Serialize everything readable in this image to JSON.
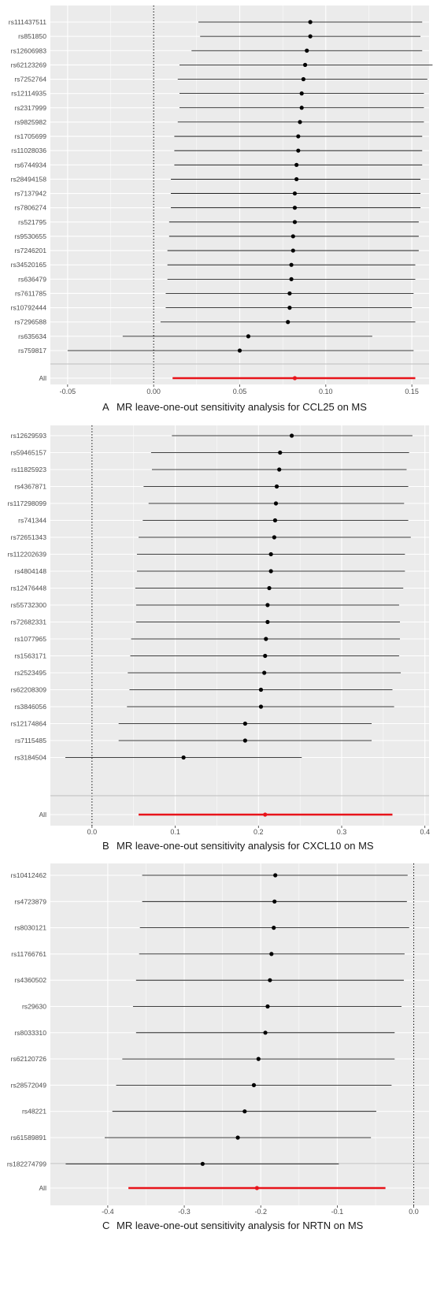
{
  "chart_data": [
    {
      "type": "forest",
      "panel_letter": "A",
      "caption": "MR leave-one-out sensitivity analysis for CCL25 on MS",
      "xlim": [
        -0.06,
        0.16
      ],
      "xticks": [
        -0.05,
        0.0,
        0.05,
        0.1,
        0.15
      ],
      "xtick_labels": [
        "-0.05",
        "0.00",
        "0.05",
        "0.10",
        "0.15"
      ],
      "null_line": 0,
      "rows": [
        {
          "snp": "rs111437511",
          "estimate": 0.091,
          "lower": 0.026,
          "upper": 0.156
        },
        {
          "snp": "rs851850",
          "estimate": 0.091,
          "lower": 0.027,
          "upper": 0.155
        },
        {
          "snp": "rs12606983",
          "estimate": 0.089,
          "lower": 0.022,
          "upper": 0.156
        },
        {
          "snp": "rs62123269",
          "estimate": 0.088,
          "lower": 0.015,
          "upper": 0.162
        },
        {
          "snp": "rs7252764",
          "estimate": 0.087,
          "lower": 0.014,
          "upper": 0.159
        },
        {
          "snp": "rs12114935",
          "estimate": 0.086,
          "lower": 0.015,
          "upper": 0.157
        },
        {
          "snp": "rs2317999",
          "estimate": 0.086,
          "lower": 0.015,
          "upper": 0.157
        },
        {
          "snp": "rs9825982",
          "estimate": 0.085,
          "lower": 0.014,
          "upper": 0.157
        },
        {
          "snp": "rs1705699",
          "estimate": 0.084,
          "lower": 0.012,
          "upper": 0.156
        },
        {
          "snp": "rs11028036",
          "estimate": 0.084,
          "lower": 0.012,
          "upper": 0.156
        },
        {
          "snp": "rs6744934",
          "estimate": 0.083,
          "lower": 0.012,
          "upper": 0.156
        },
        {
          "snp": "rs28494158",
          "estimate": 0.083,
          "lower": 0.01,
          "upper": 0.155
        },
        {
          "snp": "rs7137942",
          "estimate": 0.082,
          "lower": 0.01,
          "upper": 0.155
        },
        {
          "snp": "rs7806274",
          "estimate": 0.082,
          "lower": 0.01,
          "upper": 0.155
        },
        {
          "snp": "rs521795",
          "estimate": 0.082,
          "lower": 0.009,
          "upper": 0.154
        },
        {
          "snp": "rs9530655",
          "estimate": 0.081,
          "lower": 0.009,
          "upper": 0.154
        },
        {
          "snp": "rs7246201",
          "estimate": 0.081,
          "lower": 0.008,
          "upper": 0.154
        },
        {
          "snp": "rs34520165",
          "estimate": 0.08,
          "lower": 0.008,
          "upper": 0.152
        },
        {
          "snp": "rs636479",
          "estimate": 0.08,
          "lower": 0.008,
          "upper": 0.152
        },
        {
          "snp": "rs7611785",
          "estimate": 0.079,
          "lower": 0.007,
          "upper": 0.151
        },
        {
          "snp": "rs10792444",
          "estimate": 0.079,
          "lower": 0.007,
          "upper": 0.15
        },
        {
          "snp": "rs7296588",
          "estimate": 0.078,
          "lower": 0.004,
          "upper": 0.152
        },
        {
          "snp": "rs635634",
          "estimate": 0.055,
          "lower": -0.018,
          "upper": 0.127
        },
        {
          "snp": "rs759817",
          "estimate": 0.05,
          "lower": -0.05,
          "upper": 0.151
        }
      ],
      "all": {
        "label": "All",
        "estimate": 0.082,
        "lower": 0.011,
        "upper": 0.152
      }
    },
    {
      "type": "forest",
      "panel_letter": "B",
      "caption": "MR leave-one-out sensitivity analysis for CXCL10 on MS",
      "xlim": [
        -0.05,
        0.405
      ],
      "xticks": [
        0.0,
        0.1,
        0.2,
        0.3,
        0.4
      ],
      "xtick_labels": [
        "0.0",
        "0.1",
        "0.2",
        "0.3",
        "0.4"
      ],
      "null_line": 0,
      "rows": [
        {
          "snp": "rs12629593",
          "estimate": 0.24,
          "lower": 0.096,
          "upper": 0.385
        },
        {
          "snp": "rs59465157",
          "estimate": 0.226,
          "lower": 0.071,
          "upper": 0.381
        },
        {
          "snp": "rs11825923",
          "estimate": 0.225,
          "lower": 0.072,
          "upper": 0.378
        },
        {
          "snp": "rs4367871",
          "estimate": 0.222,
          "lower": 0.062,
          "upper": 0.38
        },
        {
          "snp": "rs117298099",
          "estimate": 0.221,
          "lower": 0.068,
          "upper": 0.375
        },
        {
          "snp": "rs741344",
          "estimate": 0.22,
          "lower": 0.061,
          "upper": 0.38
        },
        {
          "snp": "rs72651343",
          "estimate": 0.219,
          "lower": 0.056,
          "upper": 0.383
        },
        {
          "snp": "rs112202639",
          "estimate": 0.215,
          "lower": 0.054,
          "upper": 0.376
        },
        {
          "snp": "rs4804148",
          "estimate": 0.215,
          "lower": 0.054,
          "upper": 0.376
        },
        {
          "snp": "rs12476448",
          "estimate": 0.213,
          "lower": 0.052,
          "upper": 0.374
        },
        {
          "snp": "rs55732300",
          "estimate": 0.211,
          "lower": 0.053,
          "upper": 0.369
        },
        {
          "snp": "rs72682331",
          "estimate": 0.211,
          "lower": 0.053,
          "upper": 0.37
        },
        {
          "snp": "rs1077965",
          "estimate": 0.209,
          "lower": 0.047,
          "upper": 0.37
        },
        {
          "snp": "rs1563171",
          "estimate": 0.208,
          "lower": 0.046,
          "upper": 0.369
        },
        {
          "snp": "rs2523495",
          "estimate": 0.207,
          "lower": 0.043,
          "upper": 0.371
        },
        {
          "snp": "rs62208309",
          "estimate": 0.203,
          "lower": 0.045,
          "upper": 0.361
        },
        {
          "snp": "rs3846056",
          "estimate": 0.203,
          "lower": 0.042,
          "upper": 0.363
        },
        {
          "snp": "rs12174864",
          "estimate": 0.184,
          "lower": 0.032,
          "upper": 0.336
        },
        {
          "snp": "rs7115485",
          "estimate": 0.184,
          "lower": 0.032,
          "upper": 0.336
        },
        {
          "snp": "rs3184504",
          "estimate": 0.11,
          "lower": -0.032,
          "upper": 0.252
        }
      ],
      "all": {
        "label": "All",
        "estimate": 0.208,
        "lower": 0.056,
        "upper": 0.361
      }
    },
    {
      "type": "forest",
      "panel_letter": "C",
      "caption": "MR leave-one-out sensitivity analysis for NRTN on MS",
      "xlim": [
        -0.475,
        0.02
      ],
      "xticks": [
        -0.4,
        -0.3,
        -0.2,
        -0.1,
        0.0
      ],
      "xtick_labels": [
        "-0.4",
        "-0.3",
        "-0.2",
        "-0.1",
        "0.0"
      ],
      "null_line": 0,
      "rows": [
        {
          "snp": "rs10412462",
          "estimate": -0.181,
          "lower": -0.355,
          "upper": -0.008
        },
        {
          "snp": "rs4723879",
          "estimate": -0.182,
          "lower": -0.355,
          "upper": -0.009
        },
        {
          "snp": "rs8030121",
          "estimate": -0.183,
          "lower": -0.358,
          "upper": -0.006
        },
        {
          "snp": "rs11766761",
          "estimate": -0.186,
          "lower": -0.359,
          "upper": -0.012
        },
        {
          "snp": "rs4360502",
          "estimate": -0.188,
          "lower": -0.363,
          "upper": -0.013
        },
        {
          "snp": "rs29630",
          "estimate": -0.191,
          "lower": -0.367,
          "upper": -0.016
        },
        {
          "snp": "rs8033310",
          "estimate": -0.194,
          "lower": -0.363,
          "upper": -0.025
        },
        {
          "snp": "rs62120726",
          "estimate": -0.203,
          "lower": -0.381,
          "upper": -0.025
        },
        {
          "snp": "rs28572049",
          "estimate": -0.209,
          "lower": -0.389,
          "upper": -0.029
        },
        {
          "snp": "rs48221",
          "estimate": -0.221,
          "lower": -0.394,
          "upper": -0.049
        },
        {
          "snp": "rs61589891",
          "estimate": -0.23,
          "lower": -0.404,
          "upper": -0.056
        },
        {
          "snp": "rs182274799",
          "estimate": -0.276,
          "lower": -0.455,
          "upper": -0.098
        }
      ],
      "all": {
        "label": "All",
        "estimate": -0.205,
        "lower": -0.373,
        "upper": -0.037
      }
    }
  ],
  "colors": {
    "panel_background": "#ebebeb",
    "gridline": "#ffffff",
    "snp_line": "#000000",
    "all_line": "#e8141b",
    "all_point": "#e8141b",
    "divider": "#bdbdbd",
    "null_line": "#000000",
    "axis_text": "#4d4d4d"
  }
}
